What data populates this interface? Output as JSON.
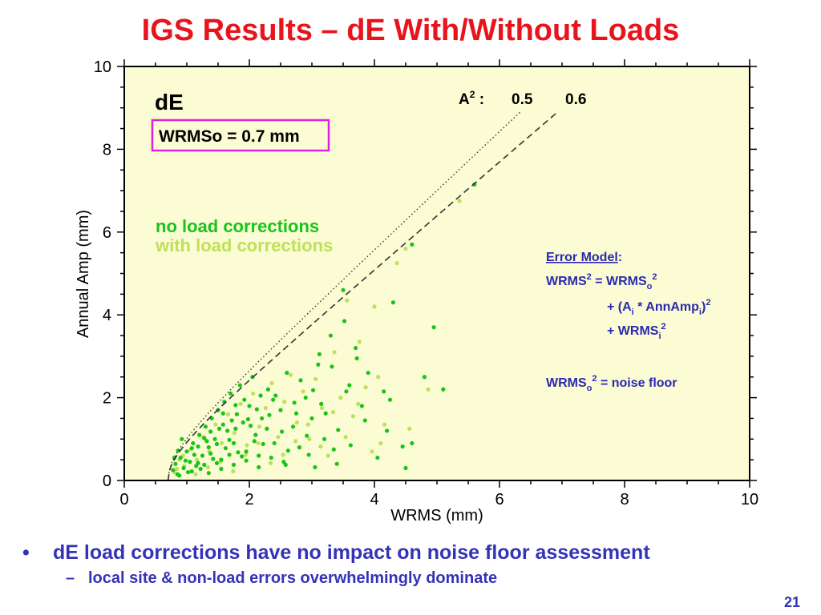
{
  "slide": {
    "title": "IGS Results – dE With/Without Loads",
    "bullet_1": "dE load corrections have no impact on noise floor assessment",
    "bullet_2": "local site & non-load errors overwhelmingly dominate",
    "page_number": "21",
    "bullet_glyph": "•",
    "sub_bullet_glyph": "–"
  },
  "chart_data": {
    "type": "scatter",
    "title": "",
    "xlabel": "WRMS (mm)",
    "ylabel": "Annual Amp (mm)",
    "xlim": [
      0,
      10
    ],
    "ylim": [
      0,
      10
    ],
    "xticks": [
      0,
      2,
      4,
      6,
      8,
      10
    ],
    "yticks": [
      0,
      2,
      4,
      6,
      8,
      10
    ],
    "grid": false,
    "background": "#fbfbd4",
    "panel_label": "dE",
    "wrms_box": "WRMSo = 0.7 mm",
    "legend": [
      "no load corrections",
      "with load corrections"
    ],
    "legend_colors": [
      "#18c418",
      "#bfe05a"
    ],
    "a2_label": "A",
    "a2_sup": "2",
    "a2_colon": " :",
    "a2_values": [
      "0.5",
      "0.6"
    ],
    "reference_curves": [
      {
        "a2": 0.5,
        "style": "dotted",
        "wrms0": 0.7,
        "x_end": 6.35
      },
      {
        "a2": 0.6,
        "style": "dashed",
        "wrms0": 0.7,
        "x_end": 6.95
      }
    ],
    "error_model": {
      "heading": "Error Model",
      "heading_colon": ":",
      "line1": "WRMS",
      "line1_sup": "2",
      "line1_rest": " = WRMS",
      "line1_sub": "o",
      "line1_sup2": "2",
      "line2_pre": "+  (A",
      "line2_sub1": "i",
      "line2_mid": " * AnnAmp",
      "line2_sub2": "i",
      "line2_post": ")",
      "line2_sup": "2",
      "line3_pre": "+  WRMS",
      "line3_sub": "i",
      "line3_sup": "2",
      "line4_pre": "WRMS",
      "line4_sub": "o",
      "line4_sup": "2",
      "line4_post": " = noise floor"
    },
    "series": [
      {
        "name": "no load corrections",
        "color": "#18c418",
        "points": [
          [
            0.78,
            0.25
          ],
          [
            0.82,
            0.4
          ],
          [
            0.85,
            0.15
          ],
          [
            0.9,
            0.55
          ],
          [
            0.95,
            0.3
          ],
          [
            1.0,
            0.7
          ],
          [
            1.05,
            0.45
          ],
          [
            1.1,
            0.9
          ],
          [
            1.15,
            0.35
          ],
          [
            1.2,
            1.1
          ],
          [
            1.25,
            0.6
          ],
          [
            1.3,
            1.3
          ],
          [
            1.35,
            0.8
          ],
          [
            1.4,
            1.5
          ],
          [
            1.45,
            1.0
          ],
          [
            1.5,
            1.7
          ],
          [
            1.55,
            0.5
          ],
          [
            1.6,
            1.9
          ],
          [
            1.65,
            1.2
          ],
          [
            1.7,
            2.1
          ],
          [
            1.75,
            0.9
          ],
          [
            1.8,
            1.6
          ],
          [
            1.85,
            2.3
          ],
          [
            1.9,
            1.4
          ],
          [
            1.95,
            0.7
          ],
          [
            2.0,
            1.8
          ],
          [
            2.05,
            2.5
          ],
          [
            2.1,
            1.1
          ],
          [
            2.15,
            0.6
          ],
          [
            2.2,
            1.5
          ],
          [
            2.3,
            2.2
          ],
          [
            2.4,
            0.9
          ],
          [
            2.5,
            1.7
          ],
          [
            2.6,
            2.6
          ],
          [
            2.7,
            1.3
          ],
          [
            2.8,
            0.8
          ],
          [
            2.9,
            2.0
          ],
          [
            3.0,
            1.5
          ],
          [
            3.1,
            2.8
          ],
          [
            3.2,
            1.0
          ],
          [
            3.3,
            3.5
          ],
          [
            3.4,
            0.4
          ],
          [
            3.5,
            4.6
          ],
          [
            3.6,
            2.3
          ],
          [
            3.7,
            3.2
          ],
          [
            3.8,
            1.8
          ],
          [
            3.9,
            2.6
          ],
          [
            4.05,
            0.55
          ],
          [
            4.2,
            1.2
          ],
          [
            4.3,
            4.3
          ],
          [
            4.5,
            0.3
          ],
          [
            4.6,
            5.7
          ],
          [
            4.8,
            2.5
          ],
          [
            4.95,
            3.7
          ],
          [
            5.1,
            2.2
          ],
          [
            5.6,
            7.15
          ],
          [
            0.92,
            1.0
          ],
          [
            1.02,
            0.2
          ],
          [
            1.12,
            0.62
          ],
          [
            1.22,
            0.28
          ],
          [
            1.32,
            0.95
          ],
          [
            1.42,
            0.52
          ],
          [
            1.52,
            1.25
          ],
          [
            1.62,
            0.78
          ],
          [
            1.72,
            1.45
          ],
          [
            1.82,
            0.68
          ],
          [
            1.92,
            1.95
          ],
          [
            2.02,
            1.32
          ],
          [
            2.12,
            1.72
          ],
          [
            2.22,
            0.88
          ],
          [
            2.32,
            1.58
          ],
          [
            2.42,
            2.05
          ],
          [
            2.52,
            1.18
          ],
          [
            2.62,
            0.72
          ],
          [
            2.72,
            1.88
          ],
          [
            2.82,
            2.42
          ],
          [
            2.92,
            1.08
          ],
          [
            3.02,
            2.18
          ],
          [
            3.12,
            3.05
          ],
          [
            3.22,
            1.62
          ],
          [
            3.32,
            2.75
          ],
          [
            3.42,
            1.22
          ],
          [
            3.52,
            3.85
          ],
          [
            3.62,
            0.85
          ],
          [
            3.72,
            2.95
          ],
          [
            4.25,
            1.95
          ],
          [
            4.6,
            0.9
          ],
          [
            1.08,
            0.78
          ],
          [
            1.18,
            0.42
          ],
          [
            1.28,
            1.02
          ],
          [
            1.38,
            0.65
          ],
          [
            1.48,
            0.88
          ],
          [
            1.58,
            1.35
          ],
          [
            1.68,
            0.98
          ],
          [
            1.78,
            1.25
          ],
          [
            1.88,
            0.58
          ],
          [
            1.98,
            1.48
          ],
          [
            2.08,
            0.95
          ],
          [
            2.18,
            2.05
          ],
          [
            2.28,
            1.25
          ],
          [
            2.38,
            1.95
          ],
          [
            0.88,
            0.12
          ],
          [
            0.98,
            0.48
          ],
          [
            1.08,
            0.22
          ],
          [
            1.18,
            0.82
          ],
          [
            1.28,
            0.38
          ],
          [
            1.38,
            1.18
          ],
          [
            1.48,
            0.42
          ],
          [
            1.58,
            1.62
          ],
          [
            1.68,
            0.62
          ],
          [
            1.78,
            1.82
          ],
          [
            2.55,
            0.45
          ],
          [
            2.75,
            1.62
          ],
          [
            2.95,
            0.62
          ],
          [
            3.15,
            1.85
          ],
          [
            3.35,
            0.75
          ],
          [
            3.55,
            2.15
          ],
          [
            3.85,
            1.45
          ],
          [
            4.15,
            2.15
          ],
          [
            4.45,
            0.82
          ],
          [
            1.35,
            0.18
          ],
          [
            1.55,
            0.28
          ],
          [
            1.75,
            0.38
          ],
          [
            1.95,
            0.48
          ],
          [
            2.15,
            0.32
          ],
          [
            2.35,
            0.55
          ],
          [
            2.58,
            0.38
          ],
          [
            3.05,
            0.32
          ],
          [
            0.8,
            0.55
          ],
          [
            0.86,
            0.72
          ]
        ]
      },
      {
        "name": "with load corrections",
        "color": "#bfe05a",
        "points": [
          [
            0.8,
            0.2
          ],
          [
            0.88,
            0.5
          ],
          [
            0.96,
            0.35
          ],
          [
            1.06,
            0.75
          ],
          [
            1.16,
            0.5
          ],
          [
            1.26,
            1.05
          ],
          [
            1.36,
            0.7
          ],
          [
            1.46,
            1.35
          ],
          [
            1.56,
            0.9
          ],
          [
            1.66,
            1.6
          ],
          [
            1.76,
            1.15
          ],
          [
            1.86,
            1.85
          ],
          [
            1.96,
            0.85
          ],
          [
            2.06,
            2.1
          ],
          [
            2.16,
            1.3
          ],
          [
            2.26,
            1.75
          ],
          [
            2.36,
            2.35
          ],
          [
            2.46,
            1.05
          ],
          [
            2.56,
            1.9
          ],
          [
            2.66,
            2.55
          ],
          [
            2.76,
            1.4
          ],
          [
            2.86,
            2.15
          ],
          [
            2.96,
            1.0
          ],
          [
            3.06,
            2.45
          ],
          [
            3.16,
            1.75
          ],
          [
            3.26,
            0.6
          ],
          [
            3.36,
            3.1
          ],
          [
            3.46,
            2.0
          ],
          [
            3.56,
            4.35
          ],
          [
            3.66,
            1.55
          ],
          [
            3.76,
            3.35
          ],
          [
            3.86,
            2.25
          ],
          [
            3.96,
            0.7
          ],
          [
            4.06,
            2.5
          ],
          [
            4.16,
            1.35
          ],
          [
            4.36,
            5.25
          ],
          [
            4.56,
            1.25
          ],
          [
            4.86,
            2.2
          ],
          [
            5.36,
            6.75
          ],
          [
            4.5,
            5.6
          ],
          [
            4.0,
            4.2
          ],
          [
            1.14,
            0.15
          ],
          [
            1.34,
            0.32
          ],
          [
            1.54,
            0.45
          ],
          [
            1.74,
            0.22
          ],
          [
            1.94,
            0.62
          ],
          [
            2.14,
            0.9
          ],
          [
            2.34,
            0.42
          ],
          [
            2.54,
            0.62
          ],
          [
            2.74,
            0.95
          ],
          [
            2.94,
            1.35
          ],
          [
            3.14,
            0.82
          ],
          [
            3.34,
            1.65
          ],
          [
            3.54,
            1.05
          ],
          [
            3.74,
            1.85
          ],
          [
            4.1,
            0.9
          ],
          [
            0.84,
            0.28
          ],
          [
            0.94,
            0.6
          ]
        ]
      }
    ]
  }
}
